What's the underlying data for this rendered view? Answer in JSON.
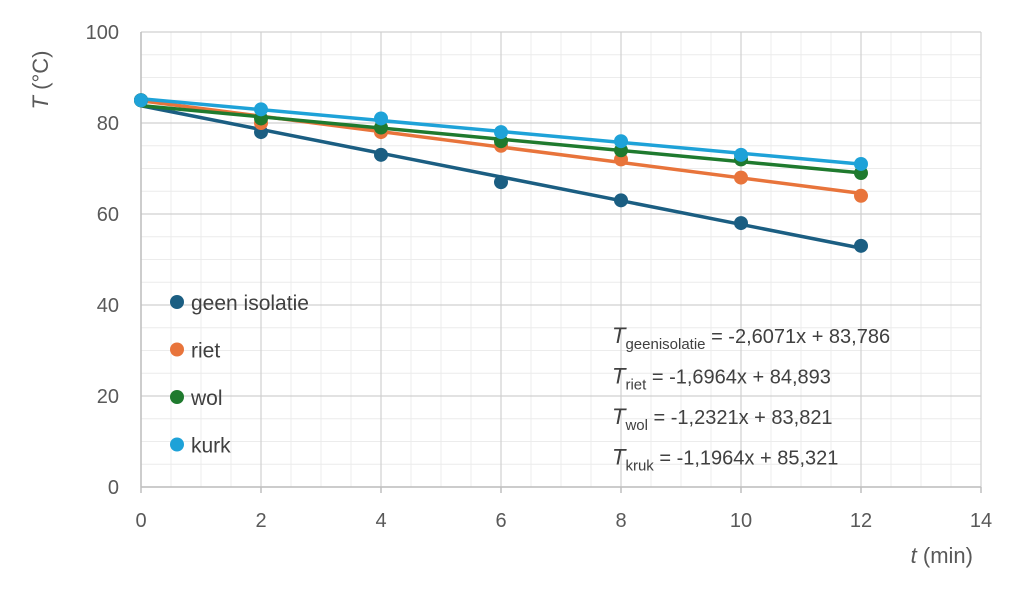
{
  "chart_data": {
    "type": "scatter",
    "title": "",
    "xlabel": "t (min)",
    "xlabel_var": "t",
    "xlabel_unit": "(min)",
    "ylabel": "T (°C)",
    "ylabel_var": "T",
    "ylabel_unit": "(°C)",
    "xlim": [
      0,
      14
    ],
    "ylim": [
      0,
      100
    ],
    "xticks": [
      0,
      2,
      4,
      6,
      8,
      10,
      12,
      14
    ],
    "yticks": [
      0,
      20,
      40,
      60,
      80,
      100
    ],
    "grid": true,
    "legend_position": "left",
    "x": [
      0,
      2,
      4,
      6,
      8,
      10,
      12
    ],
    "series": [
      {
        "name": "geen isolatie",
        "color": "#1b5e82",
        "values": [
          85,
          78,
          73,
          67,
          63,
          58,
          53
        ],
        "trend": {
          "slope": -2.6071,
          "intercept": 83.786
        }
      },
      {
        "name": "riet",
        "color": "#e8743b",
        "values": [
          85,
          80,
          78,
          75,
          72,
          68,
          64
        ],
        "trend": {
          "slope": -1.6964,
          "intercept": 84.893
        }
      },
      {
        "name": "wol",
        "color": "#1f7a2e",
        "values": [
          85,
          81,
          79,
          76,
          74,
          72,
          69
        ],
        "trend": {
          "slope": -1.2321,
          "intercept": 83.821
        }
      },
      {
        "name": "kurk",
        "color": "#1ea2d8",
        "values": [
          85,
          83,
          81,
          78,
          76,
          73,
          71
        ],
        "trend": {
          "slope": -1.1964,
          "intercept": 85.321
        }
      }
    ],
    "equations": [
      {
        "var": "T",
        "sub": "geenisolatie",
        "rhs": " = -2,6071x + 83,786"
      },
      {
        "var": "T",
        "sub": "riet",
        "rhs": " = -1,6964x + 84,893"
      },
      {
        "var": "T",
        "sub": "wol",
        "rhs": " = -1,2321x + 83,821"
      },
      {
        "var": "T",
        "sub": "kruk",
        "rhs": " = -1,1964x + 85,321"
      }
    ]
  }
}
